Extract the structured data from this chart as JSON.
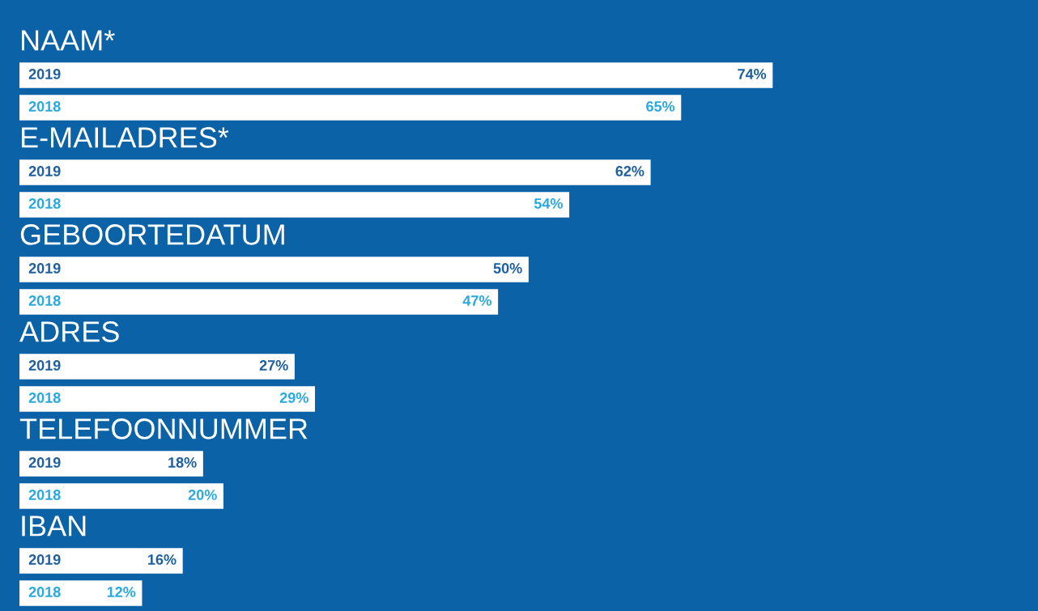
{
  "chart_data": {
    "type": "bar",
    "orientation": "horizontal",
    "categories": [
      "NAAM*",
      "E-MAILADRES*",
      "GEBOORTEDATUM",
      "ADRES",
      "TELEFOONNUMMER",
      "IBAN"
    ],
    "series": [
      {
        "name": "2019",
        "color": "#ffffff",
        "values": [
          74,
          62,
          50,
          27,
          18,
          16
        ],
        "value_labels": [
          "74%",
          "62%",
          "50%",
          "27%",
          "18%",
          "16%"
        ]
      },
      {
        "name": "2018",
        "color": "#ffffff",
        "values": [
          65,
          54,
          47,
          29,
          20,
          12
        ],
        "value_labels": [
          "65%",
          "54%",
          "47%",
          "29%",
          "20%",
          "12%"
        ]
      }
    ]
  }
}
